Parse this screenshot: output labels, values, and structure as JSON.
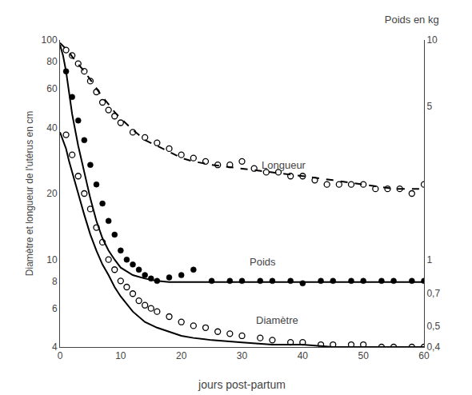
{
  "chart_data": {
    "type": "scatter",
    "title": "Poids en kg",
    "xlabel": "jours post-partum",
    "ylabel": "Diamètre et longueur de l'utérus en cm",
    "log": "y",
    "grid": false,
    "xlim": [
      0,
      60
    ],
    "ylim": [
      4,
      100
    ],
    "y2lim": [
      0.4,
      10
    ],
    "xticks": [
      0,
      10,
      20,
      30,
      40,
      50,
      60
    ],
    "yticks": [
      4,
      6,
      8,
      10,
      20,
      40,
      60,
      80,
      100
    ],
    "y2ticks": [
      {
        "value": 0.4,
        "label": "0,4"
      },
      {
        "value": 0.5,
        "label": "0,5"
      },
      {
        "value": 0.7,
        "label": "0,7"
      },
      1,
      5,
      10
    ],
    "series": [
      {
        "type": "scatter",
        "marker": "open",
        "color": "#000000",
        "x": [
          1,
          2,
          3,
          4,
          5,
          6,
          7,
          8,
          9,
          10,
          12,
          14,
          16,
          18,
          20,
          22,
          24,
          26,
          28,
          30,
          32,
          34,
          36,
          38,
          40,
          42,
          44,
          46,
          48,
          50,
          52,
          54,
          56,
          58,
          60
        ],
        "values": [
          90,
          85,
          78,
          72,
          65,
          58,
          52,
          48,
          45,
          42,
          38,
          36,
          34,
          32,
          30,
          29,
          28,
          27,
          27,
          28,
          26,
          25,
          25,
          24,
          24,
          23,
          22,
          22,
          22,
          22,
          21,
          21,
          21,
          20,
          22
        ]
      },
      {
        "type": "line",
        "line_style": "dashed",
        "color": "#000000",
        "x": [
          0,
          0.5,
          1,
          1.5,
          2,
          3,
          4,
          5,
          6,
          7,
          8,
          9,
          10,
          12,
          14,
          16,
          18,
          20,
          22,
          25,
          30,
          35,
          40,
          45,
          50,
          55,
          60
        ],
        "values": [
          97,
          94,
          91,
          88,
          84,
          78,
          72,
          66,
          60,
          55,
          51,
          47,
          44,
          39,
          35,
          33,
          31,
          29,
          28,
          27,
          26,
          25,
          24,
          23,
          22,
          21,
          21
        ]
      },
      {
        "type": "scatter",
        "marker": "filled",
        "color": "#000000",
        "x": [
          1,
          2,
          3,
          4,
          5,
          6,
          7,
          8,
          9,
          10,
          11,
          12,
          13,
          14,
          15,
          16,
          18,
          20,
          22,
          25,
          28,
          30,
          33,
          35,
          38,
          40,
          43,
          45,
          48,
          50,
          53,
          55,
          58,
          60
        ],
        "values": [
          72,
          55,
          43,
          35,
          27,
          22,
          18,
          15,
          13,
          11,
          10,
          9.5,
          9,
          8.5,
          8.2,
          8.0,
          8.3,
          8.5,
          9,
          8,
          8,
          8,
          8,
          8,
          8,
          7.8,
          8,
          8,
          8,
          8,
          8,
          8,
          8,
          8
        ]
      },
      {
        "type": "line",
        "line_style": "solid",
        "color": "#000000",
        "x": [
          0,
          0.5,
          1,
          1.5,
          2,
          3,
          4,
          5,
          6,
          7,
          8,
          9,
          10,
          12,
          14,
          16,
          18,
          20,
          25,
          30,
          35,
          40,
          45,
          50,
          55,
          60
        ],
        "values": [
          95,
          85,
          72,
          58,
          46,
          33,
          25,
          19,
          15,
          12.5,
          11,
          10,
          9.2,
          8.5,
          8.2,
          8.0,
          7.9,
          7.9,
          7.9,
          7.9,
          7.9,
          7.9,
          7.9,
          7.9,
          7.9,
          7.9
        ]
      },
      {
        "type": "scatter",
        "marker": "open",
        "color": "#000000",
        "x": [
          1,
          2,
          3,
          4,
          5,
          6,
          7,
          8,
          9,
          10,
          11,
          12,
          13,
          14,
          15,
          16,
          18,
          20,
          22,
          24,
          26,
          28,
          30,
          33,
          35,
          38,
          40,
          43,
          45,
          48,
          50,
          53,
          55,
          58,
          60
        ],
        "values": [
          37,
          30,
          24,
          20,
          17,
          14,
          12,
          10,
          9,
          8,
          7.5,
          7,
          6.5,
          6.2,
          6.0,
          5.8,
          5.5,
          5.2,
          5.0,
          4.9,
          4.7,
          4.6,
          4.5,
          4.4,
          4.3,
          4.2,
          4.2,
          4.1,
          4.1,
          4.1,
          4.1,
          4.0,
          4.0,
          4.0,
          4.0
        ]
      },
      {
        "type": "line",
        "line_style": "solid",
        "color": "#000000",
        "x": [
          0,
          0.5,
          1,
          1.5,
          2,
          3,
          4,
          5,
          6,
          7,
          8,
          9,
          10,
          12,
          14,
          16,
          18,
          20,
          22,
          25,
          30,
          35,
          40,
          45,
          50,
          55,
          60
        ],
        "values": [
          38,
          35,
          32,
          28,
          25,
          20,
          16,
          13,
          11,
          9.5,
          8.5,
          7.5,
          6.8,
          5.8,
          5.2,
          4.9,
          4.7,
          4.5,
          4.4,
          4.3,
          4.2,
          4.1,
          4.1,
          4.0,
          4.0,
          4.0,
          4.0
        ]
      }
    ],
    "annotations": [
      {
        "text": "Longueur",
        "x": 33,
        "y": 27
      },
      {
        "text": "Poids",
        "x": 31,
        "y": 9.8
      },
      {
        "text": "Diamètre",
        "x": 32,
        "y": 5.3
      }
    ]
  }
}
